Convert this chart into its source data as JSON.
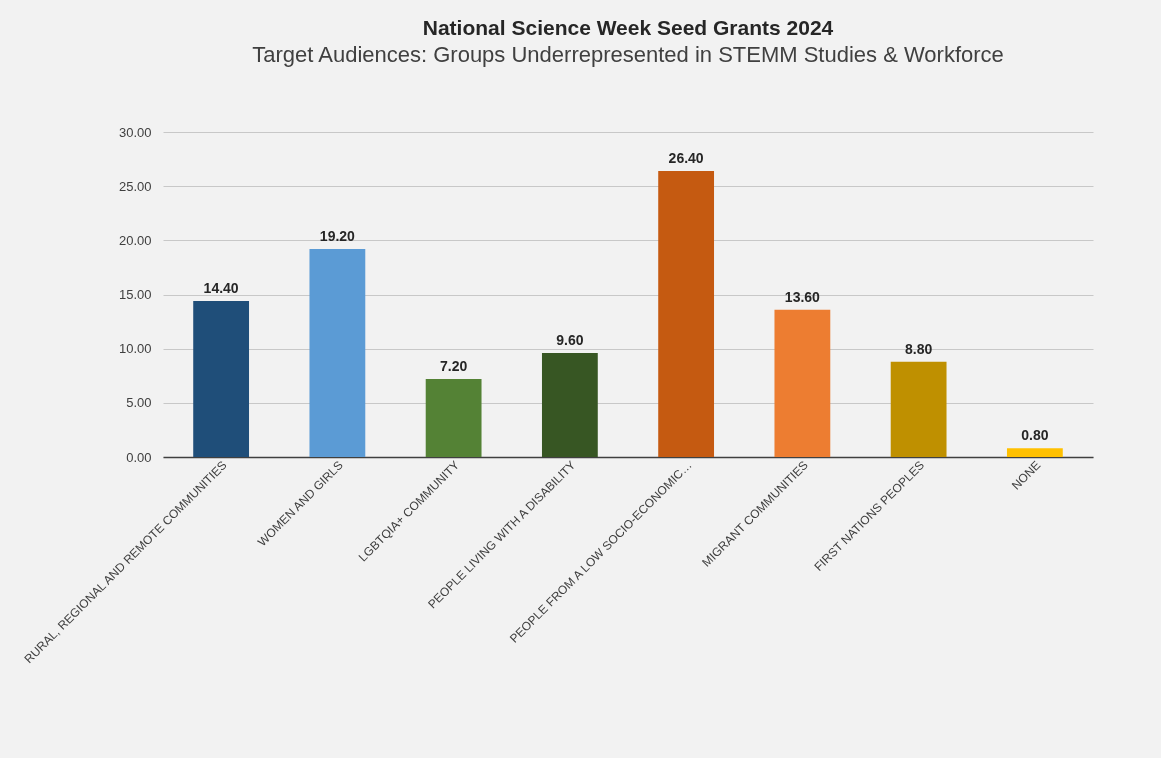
{
  "chart_data": {
    "type": "bar",
    "title": "National Science Week Seed Grants 2024",
    "subtitle": "Target Audiences: Groups Underrepresented in STEMM Studies & Workforce",
    "categories": [
      "RURAL, REGIONAL AND REMOTE COMMUNITIES",
      "WOMEN AND GIRLS",
      "LGBTQIA+ COMMUNITY",
      "PEOPLE LIVING WITH A DISABILITY",
      "PEOPLE FROM A LOW SOCIO-ECONOMIC…",
      "MIGRANT COMMUNITIES",
      "FIRST NATIONS PEOPLES",
      "NONE"
    ],
    "values": [
      14.4,
      19.2,
      7.2,
      9.6,
      26.4,
      13.6,
      8.8,
      0.8
    ],
    "value_labels": [
      "14.40",
      "19.20",
      "7.20",
      "9.60",
      "26.40",
      "13.60",
      "8.80",
      "0.80"
    ],
    "colors": [
      "#1f4e79",
      "#5b9bd5",
      "#548235",
      "#375623",
      "#c55a11",
      "#ed7d31",
      "#bf9000",
      "#ffc000"
    ],
    "ylim": [
      0,
      30
    ],
    "yticks": [
      {
        "value": 0,
        "label": "0.00"
      },
      {
        "value": 5,
        "label": "5.00"
      },
      {
        "value": 10,
        "label": "10.00"
      },
      {
        "value": 15,
        "label": "15.00"
      },
      {
        "value": 20,
        "label": "20.00"
      },
      {
        "value": 25,
        "label": "25.00"
      },
      {
        "value": 30,
        "label": "30.00"
      }
    ],
    "grid": "y"
  }
}
